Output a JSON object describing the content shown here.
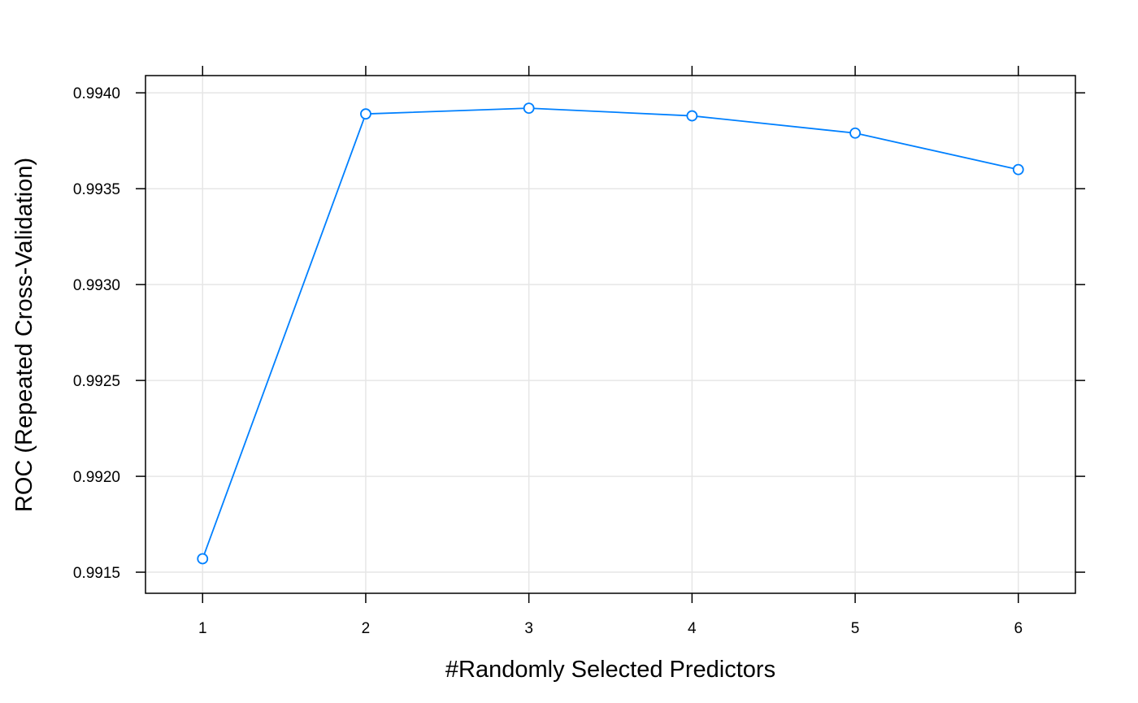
{
  "chart_data": {
    "type": "line",
    "xlabel": "#Randomly Selected Predictors",
    "ylabel": "ROC (Repeated Cross-Validation)",
    "x": [
      1,
      2,
      3,
      4,
      5,
      6
    ],
    "xticks": [
      "1",
      "2",
      "3",
      "4",
      "5",
      "6"
    ],
    "xlim": [
      0.65,
      6.35
    ],
    "ylim": [
      0.99139,
      0.99409
    ],
    "yticks": [
      0.9915,
      0.992,
      0.9925,
      0.993,
      0.9935,
      0.994
    ],
    "yticklabels": [
      "0.9915",
      "0.9920",
      "0.9925",
      "0.9930",
      "0.9935",
      "0.9940"
    ],
    "series": [
      {
        "values": [
          0.99157,
          0.99389,
          0.99392,
          0.99388,
          0.99379,
          0.9936
        ]
      }
    ],
    "color": "#0080ff",
    "grid": true,
    "marker": "open-circle"
  }
}
